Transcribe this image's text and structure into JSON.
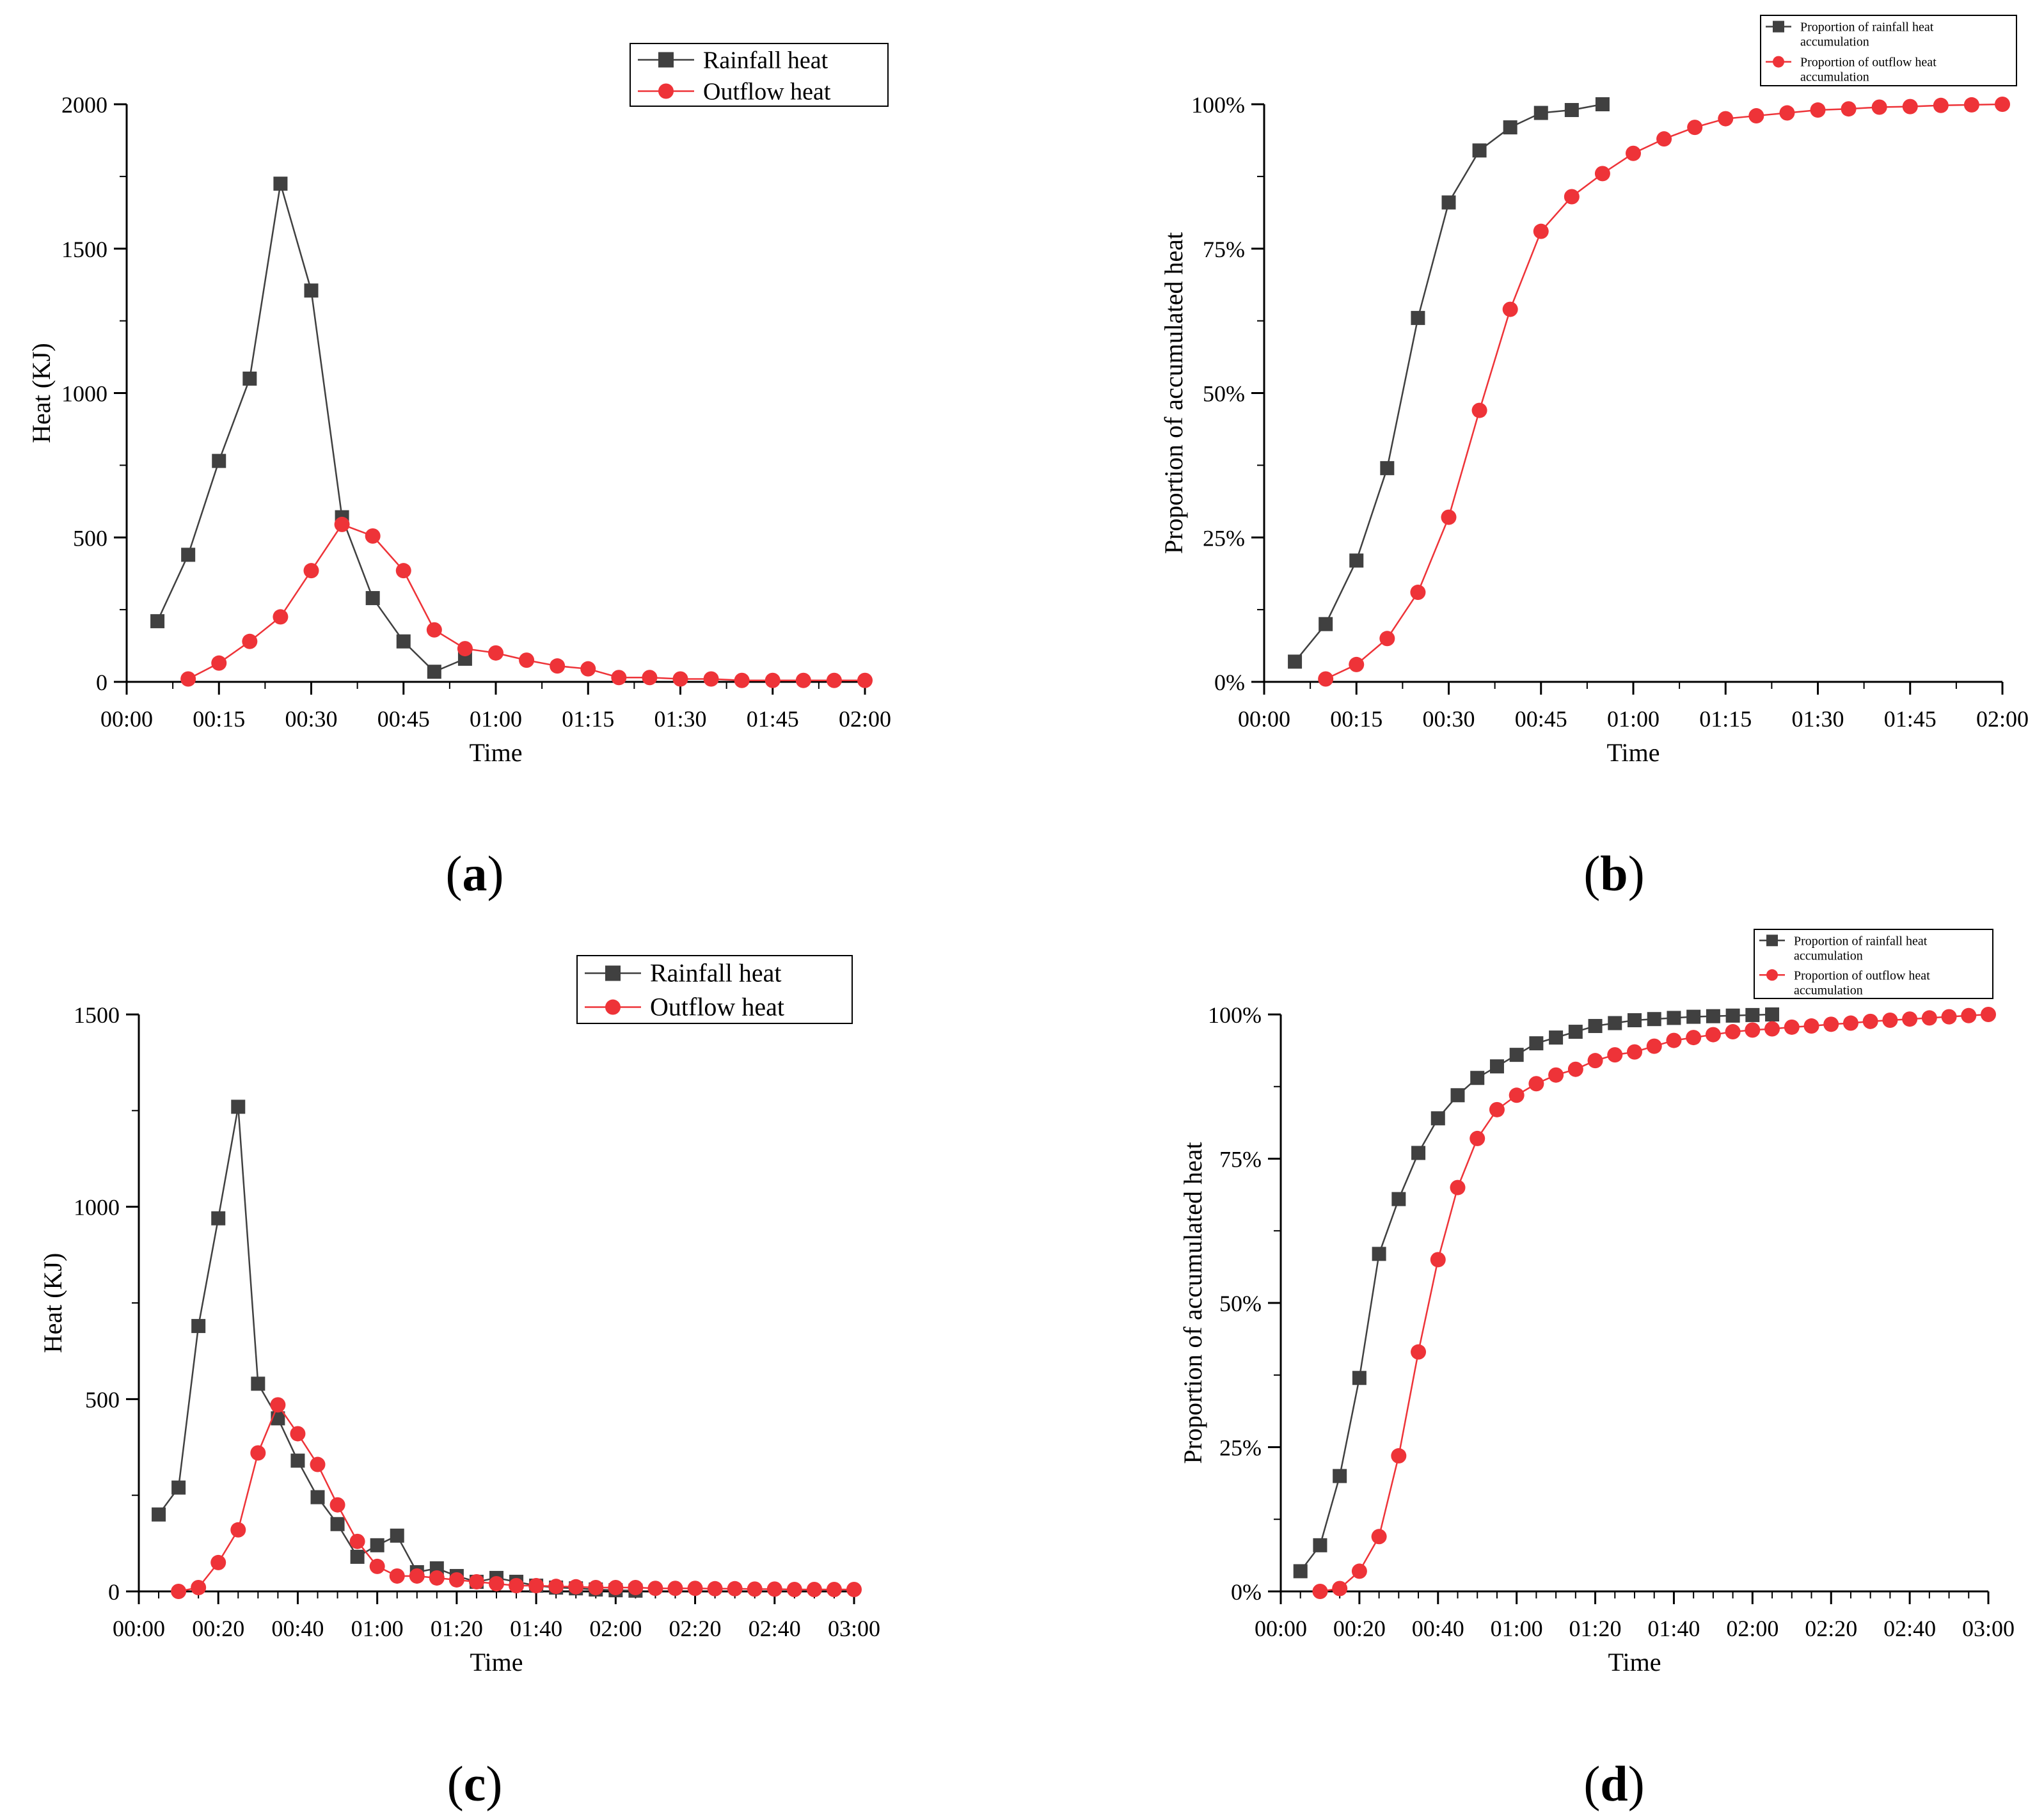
{
  "chart_data": [
    {
      "id": "a",
      "panel_label": "a",
      "type": "line",
      "x_unit": "minutes",
      "xlim": [
        0,
        120
      ],
      "ylim": [
        0,
        2000
      ],
      "xticks": [
        "00:00",
        "00:15",
        "00:30",
        "00:45",
        "01:00",
        "01:15",
        "01:30",
        "01:45",
        "02:00"
      ],
      "yticks": [
        "0",
        "500",
        "1000",
        "1500",
        "2000"
      ],
      "xlabel": "Time",
      "ylabel": "Heat (KJ)",
      "legend_position": "top-right",
      "series": [
        {
          "name": "Rainfall heat",
          "color": "#404040",
          "marker": "square",
          "x": [
            5,
            10,
            15,
            20,
            25,
            30,
            35,
            40,
            45,
            50,
            55
          ],
          "values": [
            210,
            440,
            765,
            1050,
            1725,
            1355,
            570,
            290,
            140,
            35,
            80
          ]
        },
        {
          "name": "Outflow heat",
          "color": "#ee3338",
          "marker": "circle",
          "x": [
            10,
            15,
            20,
            25,
            30,
            35,
            40,
            45,
            50,
            55,
            60,
            65,
            70,
            75,
            80,
            85,
            90,
            95,
            100,
            105,
            110,
            115,
            120
          ],
          "values": [
            10,
            65,
            140,
            225,
            385,
            545,
            505,
            385,
            180,
            115,
            100,
            75,
            55,
            45,
            15,
            15,
            10,
            10,
            5,
            5,
            5,
            5,
            5
          ]
        }
      ]
    },
    {
      "id": "b",
      "panel_label": "b",
      "type": "line",
      "x_unit": "minutes",
      "xlim": [
        0,
        120
      ],
      "ylim": [
        0,
        100
      ],
      "xticks": [
        "00:00",
        "00:15",
        "00:30",
        "00:45",
        "01:00",
        "01:15",
        "01:30",
        "01:45",
        "02:00"
      ],
      "yticks": [
        "0%",
        "25%",
        "50%",
        "75%",
        "100%"
      ],
      "xlabel": "Time",
      "ylabel": "Proportion of accumulated heat",
      "legend_position": "top-right",
      "series": [
        {
          "name": "Proportion of rainfall heat accumulation",
          "legend_lines": [
            "Proportion of rainfall heat",
            "accumulation"
          ],
          "color": "#404040",
          "marker": "square",
          "x": [
            5,
            10,
            15,
            20,
            25,
            30,
            35,
            40,
            45,
            50,
            55
          ],
          "values": [
            3.5,
            10,
            21,
            37,
            63,
            83,
            92,
            96,
            98.5,
            99,
            100
          ]
        },
        {
          "name": "Proportion of outflow heat accumulation",
          "legend_lines": [
            "Proportion of outflow heat",
            "accumulation"
          ],
          "color": "#ee3338",
          "marker": "circle",
          "x": [
            10,
            15,
            20,
            25,
            30,
            35,
            40,
            45,
            50,
            55,
            60,
            65,
            70,
            75,
            80,
            85,
            90,
            95,
            100,
            105,
            110,
            115,
            120
          ],
          "values": [
            0.5,
            3,
            7.5,
            15.5,
            28.5,
            47,
            64.5,
            78,
            84,
            88,
            91.5,
            94,
            96,
            97.5,
            98,
            98.5,
            99,
            99.2,
            99.5,
            99.6,
            99.8,
            99.9,
            100
          ]
        }
      ]
    },
    {
      "id": "c",
      "panel_label": "c",
      "type": "line",
      "x_unit": "minutes",
      "xlim": [
        0,
        180
      ],
      "ylim": [
        0,
        1500
      ],
      "xticks": [
        "00:00",
        "00:20",
        "00:40",
        "01:00",
        "01:20",
        "01:40",
        "02:00",
        "02:20",
        "02:40",
        "03:00"
      ],
      "yticks": [
        "0",
        "500",
        "1000",
        "1500"
      ],
      "xlabel": "Time",
      "ylabel": "Heat (KJ)",
      "legend_position": "top-right",
      "series": [
        {
          "name": "Rainfall heat",
          "color": "#404040",
          "marker": "square",
          "x": [
            5,
            10,
            15,
            20,
            25,
            30,
            35,
            40,
            45,
            50,
            55,
            60,
            65,
            70,
            75,
            80,
            85,
            90,
            95,
            100,
            105,
            110,
            115,
            120,
            125
          ],
          "values": [
            200,
            270,
            690,
            970,
            1260,
            540,
            450,
            340,
            245,
            175,
            90,
            120,
            145,
            50,
            60,
            40,
            25,
            35,
            25,
            15,
            10,
            8,
            5,
            3,
            2
          ]
        },
        {
          "name": "Outflow heat",
          "color": "#ee3338",
          "marker": "circle",
          "x": [
            10,
            15,
            20,
            25,
            30,
            35,
            40,
            45,
            50,
            55,
            60,
            65,
            70,
            75,
            80,
            85,
            90,
            95,
            100,
            105,
            110,
            115,
            120,
            125,
            130,
            135,
            140,
            145,
            150,
            155,
            160,
            165,
            170,
            175,
            180
          ],
          "values": [
            0,
            10,
            75,
            160,
            360,
            485,
            410,
            330,
            225,
            130,
            65,
            40,
            40,
            35,
            30,
            25,
            20,
            15,
            15,
            13,
            12,
            10,
            10,
            10,
            8,
            8,
            8,
            7,
            7,
            6,
            6,
            5,
            5,
            5,
            5
          ]
        }
      ]
    },
    {
      "id": "d",
      "panel_label": "d",
      "type": "line",
      "x_unit": "minutes",
      "xlim": [
        0,
        180
      ],
      "ylim": [
        0,
        100
      ],
      "xticks": [
        "00:00",
        "00:20",
        "00:40",
        "01:00",
        "01:20",
        "01:40",
        "02:00",
        "02:20",
        "02:40",
        "03:00"
      ],
      "yticks": [
        "0%",
        "25%",
        "50%",
        "75%",
        "100%"
      ],
      "xlabel": "Time",
      "ylabel": "Proportion of accumulated heat",
      "legend_position": "top-right",
      "series": [
        {
          "name": "Proportion of rainfall heat accumulation",
          "legend_lines": [
            "Proportion of rainfall heat",
            "accumulation"
          ],
          "color": "#404040",
          "marker": "square",
          "x": [
            5,
            10,
            15,
            20,
            25,
            30,
            35,
            40,
            45,
            50,
            55,
            60,
            65,
            70,
            75,
            80,
            85,
            90,
            95,
            100,
            105,
            110,
            115,
            120,
            125
          ],
          "values": [
            3.5,
            8,
            20,
            37,
            58.5,
            68,
            76,
            82,
            86,
            89,
            91,
            93,
            95,
            96,
            97,
            98,
            98.5,
            99,
            99.2,
            99.4,
            99.6,
            99.7,
            99.8,
            99.9,
            100
          ]
        },
        {
          "name": "Proportion of outflow heat accumulation",
          "legend_lines": [
            "Proportion of outflow heat",
            "accumulation"
          ],
          "color": "#ee3338",
          "marker": "circle",
          "x": [
            10,
            15,
            20,
            25,
            30,
            35,
            40,
            45,
            50,
            55,
            60,
            65,
            70,
            75,
            80,
            85,
            90,
            95,
            100,
            105,
            110,
            115,
            120,
            125,
            130,
            135,
            140,
            145,
            150,
            155,
            160,
            165,
            170,
            175,
            180
          ],
          "values": [
            0,
            0.5,
            3.5,
            9.5,
            23.5,
            41.5,
            57.5,
            70,
            78.5,
            83.5,
            86,
            88,
            89.5,
            90.5,
            92,
            93,
            93.5,
            94.5,
            95.5,
            96,
            96.5,
            97,
            97.3,
            97.5,
            97.8,
            98,
            98.3,
            98.5,
            98.8,
            99,
            99.2,
            99.4,
            99.6,
            99.8,
            100
          ]
        }
      ]
    }
  ]
}
